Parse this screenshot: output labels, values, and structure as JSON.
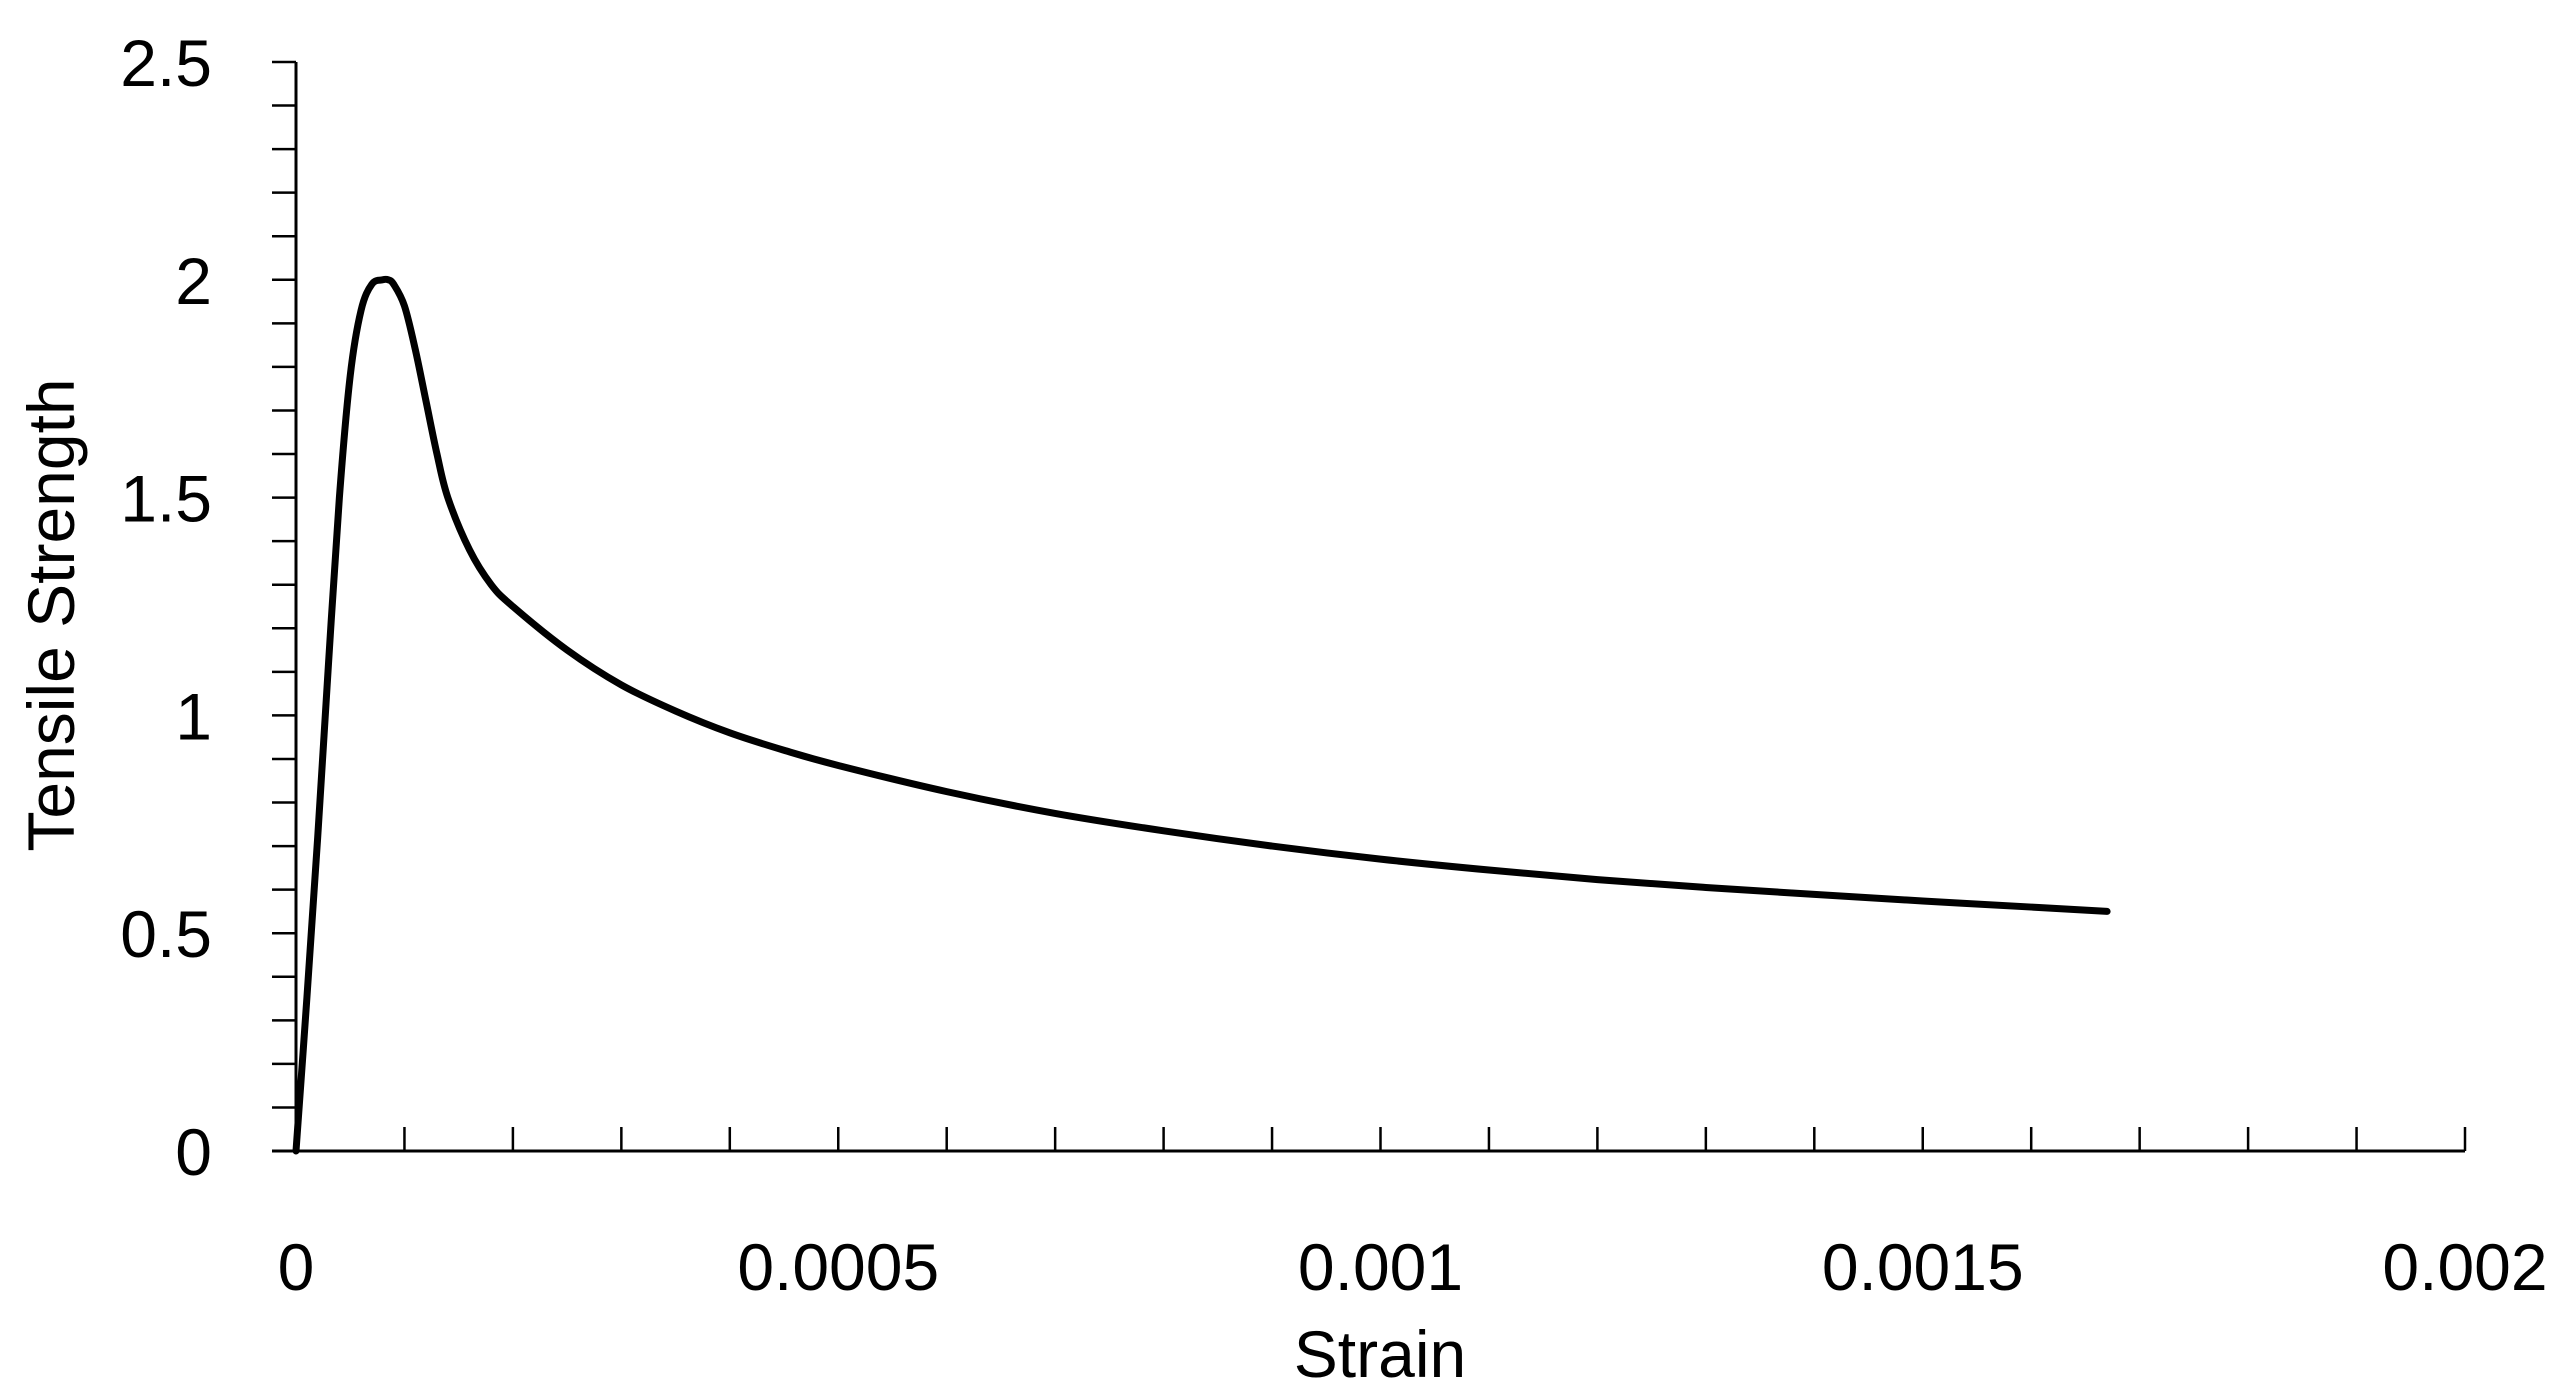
{
  "chart_data": {
    "type": "line",
    "title": "",
    "xlabel": "Strain",
    "ylabel": "Tensile Strength",
    "xlim": [
      0,
      0.002
    ],
    "ylim": [
      0,
      2.5
    ],
    "x_ticks": [
      0,
      0.0005,
      0.001,
      0.0015,
      0.002
    ],
    "x_tick_labels": [
      "0",
      "0.0005",
      "0.001",
      "0.0015",
      "0.002"
    ],
    "x_minor_step": 0.0001,
    "y_ticks": [
      0,
      0.5,
      1,
      1.5,
      2,
      2.5
    ],
    "y_tick_labels": [
      "0",
      "0.5",
      "1",
      "1.5",
      "2",
      "2.5"
    ],
    "y_minor_step": 0.1,
    "grid": false,
    "legend": "none",
    "line_color": "#000000",
    "series": [
      {
        "x": [
          0,
          1e-05,
          2e-05,
          3e-05,
          4e-05,
          5e-05,
          6e-05,
          7e-05,
          8e-05,
          8.5e-05,
          9e-05,
          0.0001,
          0.00011,
          0.00012,
          0.00013,
          0.00014,
          0.00016,
          0.00018,
          0.0002,
          0.00025,
          0.0003,
          0.00035,
          0.0004,
          0.00045,
          0.0005,
          0.0006,
          0.0007,
          0.0008,
          0.0009,
          0.001,
          0.0011,
          0.0012,
          0.0013,
          0.0014,
          0.0015,
          0.0016,
          0.00167
        ],
        "y": [
          0,
          0.35,
          0.72,
          1.12,
          1.5,
          1.78,
          1.93,
          1.99,
          2.0,
          2.0,
          1.99,
          1.94,
          1.84,
          1.72,
          1.6,
          1.5,
          1.38,
          1.3,
          1.25,
          1.15,
          1.07,
          1.01,
          0.96,
          0.92,
          0.885,
          0.825,
          0.775,
          0.735,
          0.7,
          0.67,
          0.645,
          0.623,
          0.605,
          0.589,
          0.574,
          0.56,
          0.55
        ]
      }
    ]
  }
}
